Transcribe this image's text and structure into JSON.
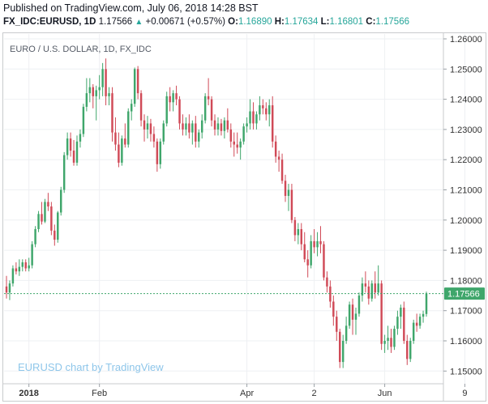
{
  "header": {
    "published": "Published on TradingView.com, July 06, 2018 14:28 BST",
    "symbol": "FX_IDC:EURUSD, 1D",
    "last": "1.17566",
    "change": "+0.00671 (+0.57%)",
    "open_label": "O:",
    "open": "1.16890",
    "high_label": "H:",
    "high": "1.17634",
    "low_label": "L:",
    "low": "1.16801",
    "close_label": "C:",
    "close": "1.17566"
  },
  "colors": {
    "up": "#3fa66b",
    "down": "#d04a57",
    "grid": "#eef0f3",
    "price_line": "#3fa66b"
  },
  "chart_data": {
    "type": "candlestick",
    "title": "EURO / U.S. DOLLAR, 1D, FX_IDC",
    "watermark": "EURUSD chart by TradingView",
    "ylim": [
      1.145,
      1.2625
    ],
    "y_ticks": [
      "1.26000",
      "1.25000",
      "1.24000",
      "1.23000",
      "1.22000",
      "1.21000",
      "1.20000",
      "1.19000",
      "1.18000",
      "1.17000",
      "1.16000",
      "1.15000"
    ],
    "x_ticks": [
      {
        "label": "2018",
        "bold": true,
        "bar": 7
      },
      {
        "label": "Feb",
        "bold": false,
        "bar": 29
      },
      {
        "label": "Apr",
        "bold": false,
        "bar": 75
      },
      {
        "label": "2",
        "bold": false,
        "bar": 96
      },
      {
        "label": "Jun",
        "bold": false,
        "bar": 118
      },
      {
        "label": "9",
        "bold": false,
        "bar": 143
      }
    ],
    "last_price": 1.17566,
    "last_price_label": "1.17566",
    "grid": true,
    "ohlc": [
      [
        1.178,
        1.1815,
        1.174,
        1.176
      ],
      [
        1.176,
        1.18,
        1.1735,
        1.179
      ],
      [
        1.179,
        1.185,
        1.178,
        1.184
      ],
      [
        1.184,
        1.186,
        1.182,
        1.183
      ],
      [
        1.183,
        1.187,
        1.1815,
        1.1845
      ],
      [
        1.1845,
        1.187,
        1.183,
        1.186
      ],
      [
        1.186,
        1.187,
        1.183,
        1.184
      ],
      [
        1.184,
        1.1875,
        1.183,
        1.185
      ],
      [
        1.185,
        1.193,
        1.184,
        1.192
      ],
      [
        1.192,
        1.198,
        1.191,
        1.197
      ],
      [
        1.197,
        1.203,
        1.196,
        1.202
      ],
      [
        1.202,
        1.206,
        1.1985,
        1.1995
      ],
      [
        1.1995,
        1.207,
        1.199,
        1.206
      ],
      [
        1.206,
        1.209,
        1.203,
        1.2045
      ],
      [
        1.2045,
        1.206,
        1.195,
        1.1965
      ],
      [
        1.1965,
        1.1985,
        1.1915,
        1.1935
      ],
      [
        1.1935,
        1.203,
        1.1925,
        1.2025
      ],
      [
        1.2025,
        1.211,
        1.2015,
        1.21
      ],
      [
        1.21,
        1.2225,
        1.209,
        1.2215
      ],
      [
        1.2215,
        1.229,
        1.22,
        1.227
      ],
      [
        1.227,
        1.229,
        1.221,
        1.223
      ],
      [
        1.223,
        1.2265,
        1.218,
        1.219
      ],
      [
        1.219,
        1.228,
        1.218,
        1.226
      ],
      [
        1.226,
        1.23,
        1.224,
        1.2285
      ],
      [
        1.2285,
        1.2385,
        1.2275,
        1.2375
      ],
      [
        1.2375,
        1.247,
        1.236,
        1.242
      ],
      [
        1.242,
        1.247,
        1.239,
        1.244
      ],
      [
        1.244,
        1.245,
        1.237,
        1.241
      ],
      [
        1.241,
        1.2445,
        1.233,
        1.243
      ],
      [
        1.243,
        1.248,
        1.24,
        1.244
      ],
      [
        1.244,
        1.252,
        1.241,
        1.25
      ],
      [
        1.25,
        1.2535,
        1.238,
        1.241
      ],
      [
        1.241,
        1.244,
        1.238,
        1.242
      ],
      [
        1.242,
        1.244,
        1.226,
        1.229
      ],
      [
        1.229,
        1.234,
        1.223,
        1.225
      ],
      [
        1.225,
        1.229,
        1.2175,
        1.219
      ],
      [
        1.219,
        1.228,
        1.218,
        1.227
      ],
      [
        1.227,
        1.232,
        1.224,
        1.225
      ],
      [
        1.225,
        1.237,
        1.224,
        1.236
      ],
      [
        1.236,
        1.24,
        1.233,
        1.2385
      ],
      [
        1.2385,
        1.2505,
        1.2375,
        1.25
      ],
      [
        1.25,
        1.251,
        1.24,
        1.242
      ],
      [
        1.242,
        1.243,
        1.231,
        1.233
      ],
      [
        1.233,
        1.235,
        1.226,
        1.23
      ],
      [
        1.23,
        1.2345,
        1.227,
        1.232
      ],
      [
        1.232,
        1.2335,
        1.226,
        1.2285
      ],
      [
        1.2285,
        1.231,
        1.224,
        1.226
      ],
      [
        1.226,
        1.227,
        1.216,
        1.2185
      ],
      [
        1.2185,
        1.227,
        1.217,
        1.226
      ],
      [
        1.226,
        1.233,
        1.225,
        1.232
      ],
      [
        1.232,
        1.2425,
        1.231,
        1.241
      ],
      [
        1.241,
        1.244,
        1.236,
        1.239
      ],
      [
        1.239,
        1.243,
        1.236,
        1.242
      ],
      [
        1.242,
        1.2445,
        1.238,
        1.24
      ],
      [
        1.24,
        1.241,
        1.23,
        1.232
      ],
      [
        1.232,
        1.235,
        1.228,
        1.23
      ],
      [
        1.23,
        1.234,
        1.228,
        1.232
      ],
      [
        1.232,
        1.235,
        1.227,
        1.229
      ],
      [
        1.229,
        1.233,
        1.225,
        1.232
      ],
      [
        1.232,
        1.2345,
        1.224,
        1.226
      ],
      [
        1.226,
        1.23,
        1.224,
        1.229
      ],
      [
        1.229,
        1.235,
        1.227,
        1.233
      ],
      [
        1.233,
        1.242,
        1.232,
        1.241
      ],
      [
        1.241,
        1.247,
        1.238,
        1.24
      ],
      [
        1.24,
        1.241,
        1.231,
        1.233
      ],
      [
        1.233,
        1.235,
        1.228,
        1.23
      ],
      [
        1.23,
        1.234,
        1.228,
        1.232
      ],
      [
        1.232,
        1.2335,
        1.228,
        1.2295
      ],
      [
        1.2295,
        1.234,
        1.227,
        1.233
      ],
      [
        1.233,
        1.237,
        1.229,
        1.23
      ],
      [
        1.23,
        1.232,
        1.224,
        1.226
      ],
      [
        1.226,
        1.229,
        1.221,
        1.225
      ],
      [
        1.225,
        1.229,
        1.222,
        1.224
      ],
      [
        1.224,
        1.227,
        1.22,
        1.226
      ],
      [
        1.226,
        1.232,
        1.225,
        1.231
      ],
      [
        1.231,
        1.234,
        1.229,
        1.232
      ],
      [
        1.232,
        1.24,
        1.23,
        1.236
      ],
      [
        1.236,
        1.239,
        1.23,
        1.232
      ],
      [
        1.232,
        1.236,
        1.23,
        1.235
      ],
      [
        1.235,
        1.241,
        1.233,
        1.238
      ],
      [
        1.238,
        1.24,
        1.235,
        1.237
      ],
      [
        1.237,
        1.239,
        1.233,
        1.235
      ],
      [
        1.235,
        1.24,
        1.231,
        1.238
      ],
      [
        1.238,
        1.241,
        1.224,
        1.226
      ],
      [
        1.226,
        1.228,
        1.219,
        1.221
      ],
      [
        1.221,
        1.223,
        1.216,
        1.22
      ],
      [
        1.22,
        1.222,
        1.212,
        1.213
      ],
      [
        1.213,
        1.215,
        1.206,
        1.208
      ],
      [
        1.208,
        1.212,
        1.203,
        1.21
      ],
      [
        1.21,
        1.212,
        1.199,
        1.2
      ],
      [
        1.2,
        1.201,
        1.193,
        1.195
      ],
      [
        1.195,
        1.199,
        1.192,
        1.197
      ],
      [
        1.197,
        1.199,
        1.19,
        1.192
      ],
      [
        1.192,
        1.196,
        1.186,
        1.187
      ],
      [
        1.187,
        1.19,
        1.181,
        1.185
      ],
      [
        1.185,
        1.195,
        1.184,
        1.193
      ],
      [
        1.193,
        1.197,
        1.189,
        1.191
      ],
      [
        1.191,
        1.196,
        1.188,
        1.193
      ],
      [
        1.193,
        1.198,
        1.189,
        1.192
      ],
      [
        1.192,
        1.193,
        1.18,
        1.181
      ],
      [
        1.181,
        1.183,
        1.176,
        1.178
      ],
      [
        1.178,
        1.18,
        1.171,
        1.173
      ],
      [
        1.173,
        1.175,
        1.165,
        1.168
      ],
      [
        1.168,
        1.17,
        1.16,
        1.163
      ],
      [
        1.163,
        1.164,
        1.151,
        1.153
      ],
      [
        1.153,
        1.162,
        1.151,
        1.16
      ],
      [
        1.16,
        1.168,
        1.159,
        1.165
      ],
      [
        1.165,
        1.173,
        1.164,
        1.172
      ],
      [
        1.172,
        1.174,
        1.162,
        1.167
      ],
      [
        1.167,
        1.171,
        1.162,
        1.169
      ],
      [
        1.169,
        1.176,
        1.168,
        1.175
      ],
      [
        1.175,
        1.181,
        1.173,
        1.179
      ],
      [
        1.179,
        1.183,
        1.176,
        1.178
      ],
      [
        1.178,
        1.18,
        1.172,
        1.174
      ],
      [
        1.174,
        1.18,
        1.173,
        1.179
      ],
      [
        1.179,
        1.183,
        1.174,
        1.176
      ],
      [
        1.176,
        1.185,
        1.175,
        1.179
      ],
      [
        1.179,
        1.18,
        1.157,
        1.159
      ],
      [
        1.159,
        1.162,
        1.156,
        1.16
      ],
      [
        1.16,
        1.165,
        1.157,
        1.161
      ],
      [
        1.161,
        1.164,
        1.156,
        1.158
      ],
      [
        1.158,
        1.165,
        1.157,
        1.164
      ],
      [
        1.164,
        1.17,
        1.162,
        1.168
      ],
      [
        1.168,
        1.172,
        1.164,
        1.171
      ],
      [
        1.171,
        1.173,
        1.159,
        1.16
      ],
      [
        1.16,
        1.162,
        1.152,
        1.154
      ],
      [
        1.154,
        1.161,
        1.153,
        1.16
      ],
      [
        1.16,
        1.167,
        1.159,
        1.166
      ],
      [
        1.166,
        1.169,
        1.163,
        1.165
      ],
      [
        1.165,
        1.169,
        1.164,
        1.168
      ],
      [
        1.168,
        1.17,
        1.166,
        1.1689
      ],
      [
        1.1689,
        1.1763,
        1.168,
        1.1757
      ]
    ]
  }
}
